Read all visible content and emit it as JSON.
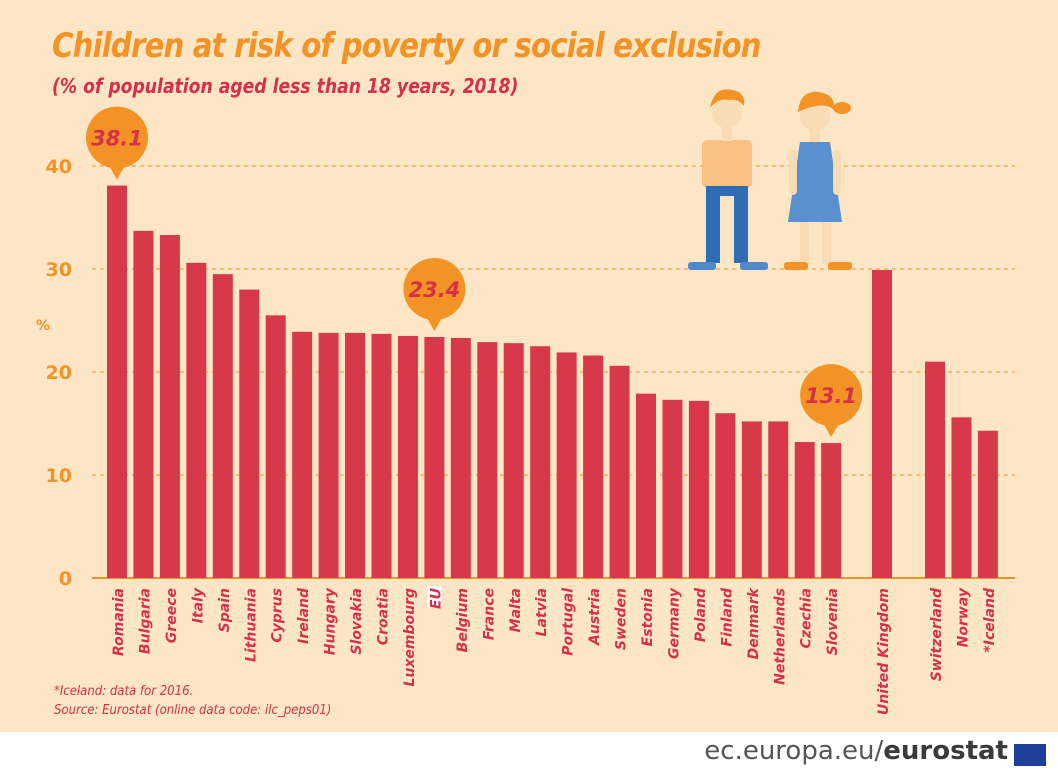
{
  "title": "Children at risk of poverty or social exclusion",
  "subtitle": "(% of population aged less than 18 years, 2018)",
  "notes": [
    "*Iceland: data for 2016.",
    "Source: Eurostat (online data code: ilc_peps01)"
  ],
  "footer": {
    "domain": "ec.europa.eu/",
    "brand": "eurostat"
  },
  "colors": {
    "background": "#fde6c6",
    "bar": "#d7394b",
    "accent": "#f39325",
    "text_red": "#d7304a"
  },
  "chart_data": {
    "type": "bar",
    "title": "Children at risk of poverty or social exclusion",
    "subtitle": "(% of population aged less than 18 years, 2018)",
    "ylabel": "%",
    "ylim": [
      0,
      40
    ],
    "yticks": [
      0,
      10,
      20,
      30,
      40
    ],
    "grid": true,
    "groups": [
      {
        "categories": [
          "Romania",
          "Bulgaria",
          "Greece",
          "Italy",
          "Spain",
          "Lithuania",
          "Cyprus",
          "Ireland",
          "Hungary",
          "Slovakia",
          "Croatia",
          "Luxembourg",
          "EU",
          "Belgium",
          "France",
          "Malta",
          "Latvia",
          "Portugal",
          "Austria",
          "Sweden",
          "Estonia",
          "Germany",
          "Poland",
          "Finland",
          "Denmark",
          "Netherlands",
          "Czechia",
          "Slovenia"
        ],
        "values": [
          38.1,
          33.7,
          33.3,
          30.6,
          29.5,
          28.0,
          25.5,
          23.9,
          23.8,
          23.8,
          23.7,
          23.5,
          23.4,
          23.3,
          22.9,
          22.8,
          22.5,
          21.9,
          21.6,
          20.6,
          17.9,
          17.3,
          17.2,
          16.0,
          15.2,
          15.2,
          13.2,
          13.1
        ]
      },
      {
        "categories": [
          "United Kingdom"
        ],
        "values": [
          29.9
        ]
      },
      {
        "categories": [
          "Switzerland",
          "Norway",
          "*Iceland"
        ],
        "values": [
          21.0,
          15.6,
          14.3
        ]
      }
    ],
    "callouts": [
      {
        "category": "Romania",
        "label": "38.1"
      },
      {
        "category": "EU",
        "label": "23.4"
      },
      {
        "category": "Slovenia",
        "label": "13.1"
      }
    ],
    "highlight_category": "EU"
  }
}
